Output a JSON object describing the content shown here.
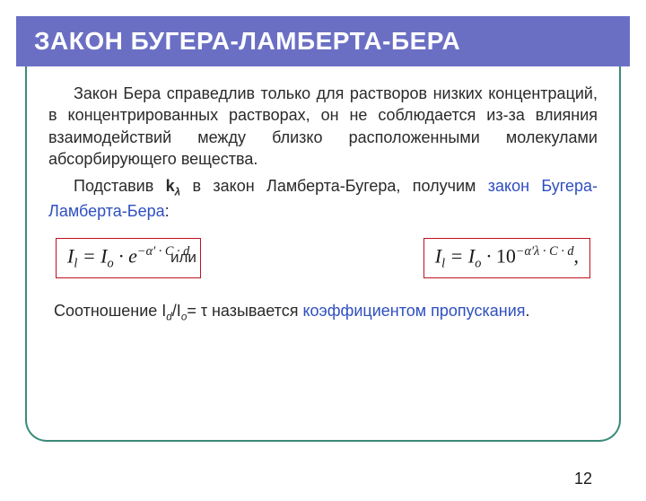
{
  "title": "ЗАКОН БУГЕРА-ЛАМБЕРТА-БЕРА",
  "para1": "Закон Бера справедлив только для растворов низких концентраций, в концентрированных растворах, он не соблюдается из-за влияния взаимодействий между близко расположенными молекулами абсорбирующего вещества.",
  "para2_a": "Подставив ",
  "para2_k": "k",
  "para2_lambda": "λ",
  "para2_b": " в закон Ламберта-Бугера, получим ",
  "para2_law": "закон Бугера-Ламберта-Бера",
  "para2_colon": ":",
  "or_label": "или",
  "formula1_I": "I",
  "formula1_l": "l",
  "formula1_eq": " = ",
  "formula1_Io": "I",
  "formula1_o": "o",
  "formula1_dot": " · ",
  "formula1_e": "e",
  "formula1_exp": "−α′ · C · d",
  "formula2_I": "I",
  "formula2_l": "l",
  "formula2_eq": " = ",
  "formula2_Io": "I",
  "formula2_o": "o",
  "formula2_dot": " · ",
  "formula2_base": "10",
  "formula2_exp": "−α′λ · C · d",
  "formula2_comma": ",",
  "ratio_a": "Соотношение I",
  "ratio_d": "d",
  "ratio_slash": "/I",
  "ratio_o": "o",
  "ratio_eq": "= τ называется ",
  "ratio_term": "коэффициентом пропускания",
  "ratio_dot": ".",
  "page_number": "12",
  "colors": {
    "banner_bg": "#6b6fc4",
    "banner_fg": "#ffffff",
    "frame_border": "#3b8b7a",
    "text": "#2a2a2a",
    "highlight": "#2f4fc0",
    "formula_border": "#c01020"
  }
}
